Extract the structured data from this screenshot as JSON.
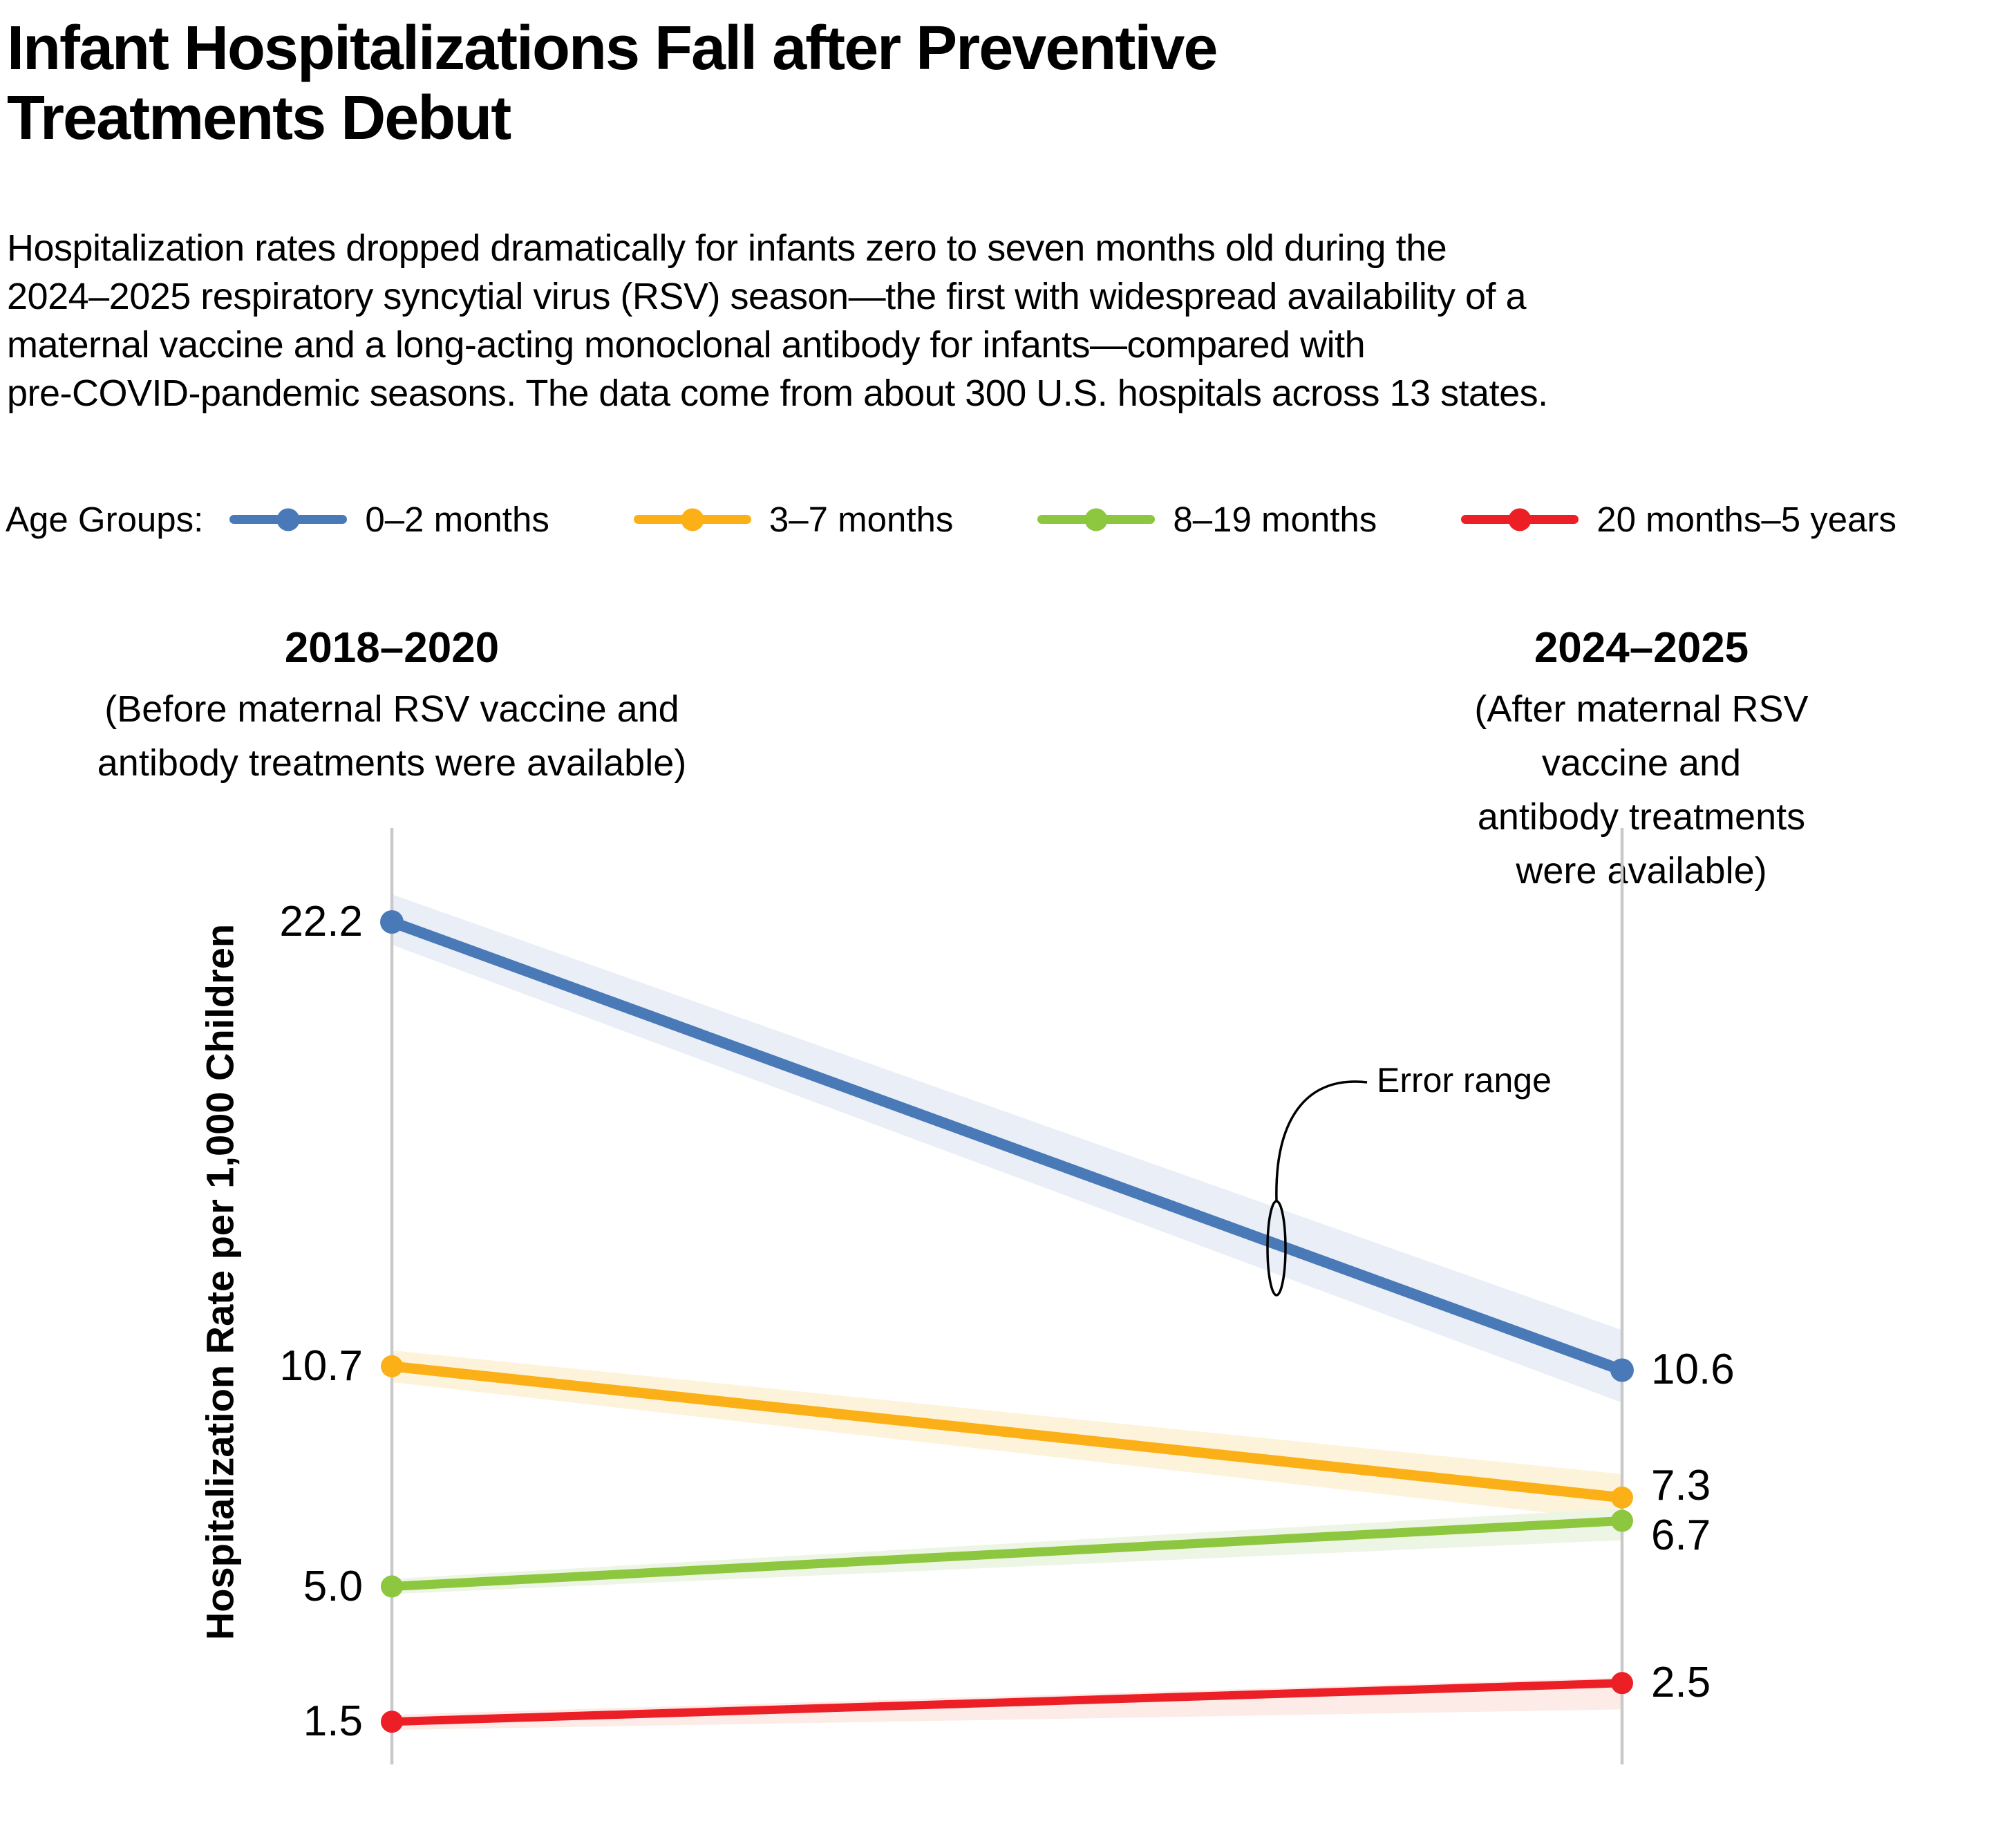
{
  "title": "Infant Hospitalizations Fall after Preventive\nTreatments Debut",
  "subtitle": "Hospitalization rates dropped dramatically for infants zero to seven months old during the\n2024–2025 respiratory syncytial virus (RSV) season—the first with widespread availability of a\nmaternal vaccine and a long-acting monoclonal antibody for infants—compared with\npre-COVID-pandemic seasons. The data come from about 300 U.S. hospitals across 13 states.",
  "legend": {
    "label": "Age Groups:",
    "items": [
      {
        "label": "0–2 months"
      },
      {
        "label": "3–7 months"
      },
      {
        "label": "8–19 months"
      },
      {
        "label": "20 months–5 years"
      }
    ]
  },
  "periods": {
    "before": {
      "label": "2018–2020",
      "caption": "(Before maternal RSV vaccine and\nantibody treatments were available)"
    },
    "after": {
      "label": "2024–2025",
      "caption": "(After maternal RSV vaccine and\nantibody treatments were available)"
    }
  },
  "chart_data": {
    "type": "line",
    "subtype": "slope-chart-with-error-bands",
    "x_categories": [
      "2018–2020",
      "2024–2025"
    ],
    "ylabel": "Hospitalization Rate per 1,000 Children",
    "ylim": [
      0,
      24.6
    ],
    "grid": false,
    "legend_position": "top",
    "axis_color": "#c9c9c9",
    "annotation": {
      "label": "Error range"
    },
    "series": [
      {
        "name": "0–2 months",
        "color": "#4a79b8",
        "band_color": "#e9eef7",
        "values": [
          22.2,
          10.6
        ]
      },
      {
        "name": "3–7 months",
        "color": "#fbb018",
        "band_color": "#fdf3da",
        "values": [
          10.7,
          7.3
        ]
      },
      {
        "name": "8–19 months",
        "color": "#8dc63f",
        "band_color": "#edf5e5",
        "values": [
          5.0,
          6.7
        ]
      },
      {
        "name": "20 months–5 years",
        "color": "#ec1e26",
        "band_color": "#fcebe7",
        "values": [
          1.5,
          2.5
        ]
      }
    ],
    "value_labels": {
      "before": [
        "22.2",
        "10.7",
        "5.0",
        "1.5"
      ],
      "after": [
        "10.6",
        "7.3",
        "6.7",
        "2.5"
      ]
    }
  }
}
